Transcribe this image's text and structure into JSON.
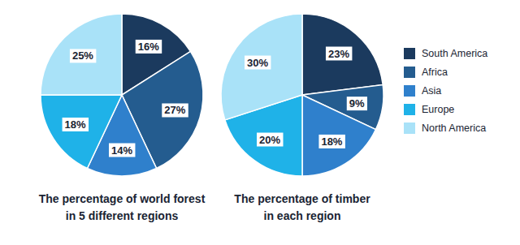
{
  "chart_data": [
    {
      "type": "pie",
      "title": "The percentage of world forest\nin 5 different regions",
      "categories": [
        "South America",
        "Africa",
        "Asia",
        "Europe",
        "North America"
      ],
      "values": [
        16,
        27,
        14,
        18,
        25
      ],
      "value_labels": [
        "16%",
        "27%",
        "14%",
        "18%",
        "25%"
      ],
      "colors": [
        "#1b3a5e",
        "#245c8f",
        "#2f80cc",
        "#1fb2e8",
        "#a9e2f8"
      ],
      "data_labels": true
    },
    {
      "type": "pie",
      "title": "The percentage of timber\nin each region",
      "categories": [
        "South America",
        "Africa",
        "Asia",
        "Europe",
        "North America"
      ],
      "values": [
        23,
        9,
        18,
        20,
        30
      ],
      "value_labels": [
        "23%",
        "9%",
        "18%",
        "20%",
        "30%"
      ],
      "colors": [
        "#1b3a5e",
        "#245c8f",
        "#2f80cc",
        "#1fb2e8",
        "#a9e2f8"
      ],
      "data_labels": true,
      "legend": "right"
    }
  ]
}
